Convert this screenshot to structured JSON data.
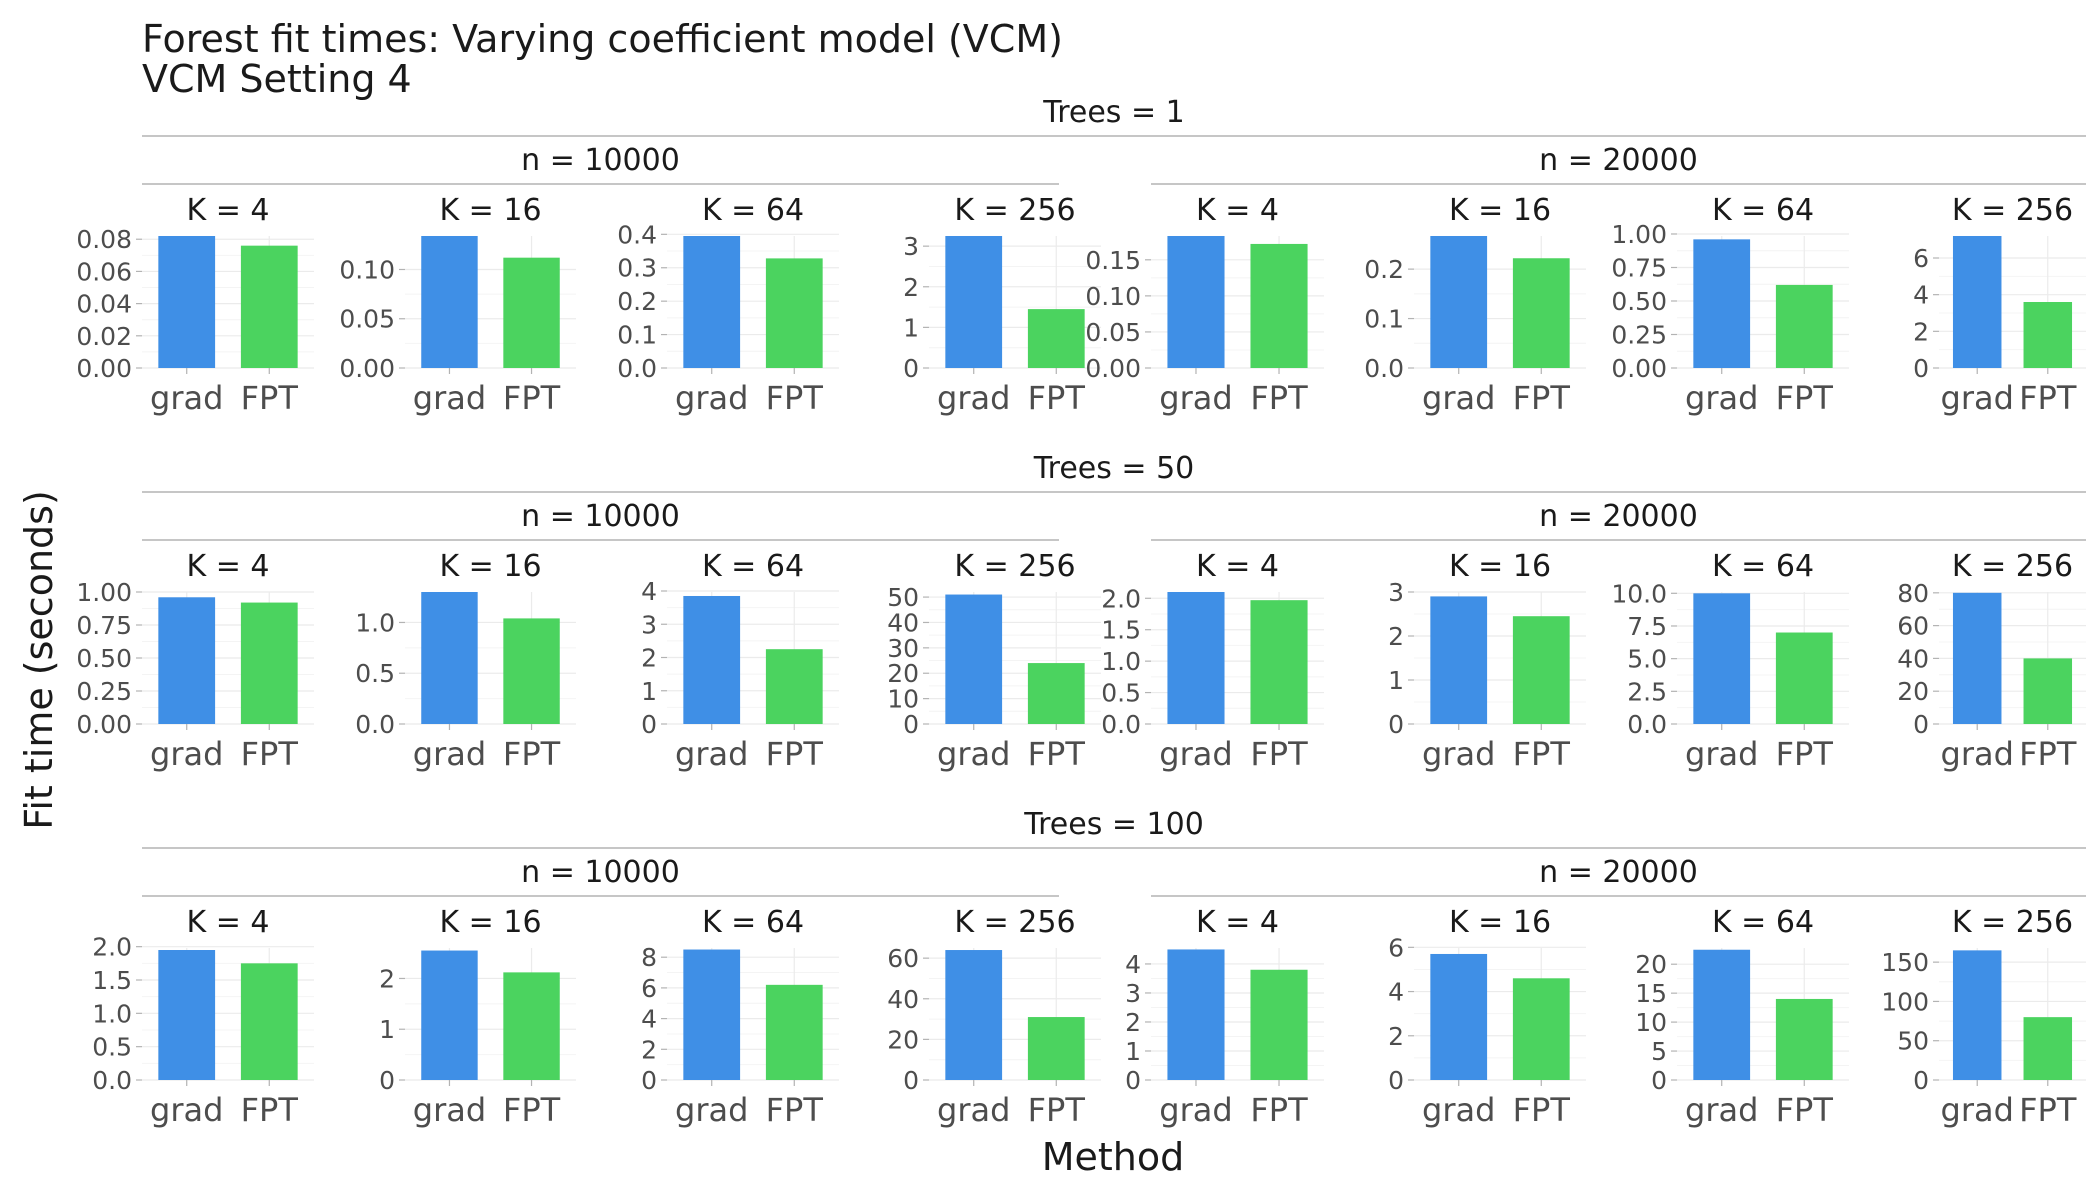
{
  "chart_data": {
    "type": "bar",
    "title": "Forest fit times: Varying coefficient model (VCM)",
    "subtitle": "VCM Setting 4",
    "xlabel": "Method",
    "ylabel": "Fit time (seconds)",
    "categories": [
      "grad",
      "FPT"
    ],
    "colors": {
      "grad": "#3f8fe6",
      "FPT": "#4bd35f"
    },
    "rows": [
      {
        "label": "Trees = 1",
        "groups": [
          {
            "label": "n = 10000",
            "panels": [
              {
                "label": "K = 4",
                "values": [
                  0.082,
                  0.076
                ],
                "ticks": [
                  0,
                  0.02,
                  0.04,
                  0.06,
                  0.08
                ],
                "tick_labels": [
                  "0.00",
                  "0.02",
                  "0.04",
                  "0.06",
                  "0.08"
                ],
                "ylim": [
                  0,
                  0.082
                ]
              },
              {
                "label": "K = 16",
                "values": [
                  0.134,
                  0.112
                ],
                "ticks": [
                  0,
                  0.05,
                  0.1
                ],
                "tick_labels": [
                  "0.00",
                  "0.05",
                  "0.10"
                ],
                "ylim": [
                  0,
                  0.134
                ]
              },
              {
                "label": "K = 64",
                "values": [
                  0.395,
                  0.328
                ],
                "ticks": [
                  0,
                  0.1,
                  0.2,
                  0.3,
                  0.4
                ],
                "tick_labels": [
                  "0.0",
                  "0.1",
                  "0.2",
                  "0.3",
                  "0.4"
                ],
                "ylim": [
                  0,
                  0.395
                ]
              },
              {
                "label": "K = 256",
                "values": [
                  3.25,
                  1.45
                ],
                "ticks": [
                  0,
                  1,
                  2,
                  3
                ],
                "tick_labels": [
                  "0",
                  "1",
                  "2",
                  "3"
                ],
                "ylim": [
                  0,
                  3.25
                ]
              }
            ]
          },
          {
            "label": "n = 20000",
            "panels": [
              {
                "label": "K = 4",
                "values": [
                  0.183,
                  0.172
                ],
                "ticks": [
                  0,
                  0.05,
                  0.1,
                  0.15
                ],
                "tick_labels": [
                  "0.00",
                  "0.05",
                  "0.10",
                  "0.15"
                ],
                "ylim": [
                  0,
                  0.183
                ]
              },
              {
                "label": "K = 16",
                "values": [
                  0.267,
                  0.222
                ],
                "ticks": [
                  0,
                  0.1,
                  0.2
                ],
                "tick_labels": [
                  "0.0",
                  "0.1",
                  "0.2"
                ],
                "ylim": [
                  0,
                  0.267
                ]
              },
              {
                "label": "K = 64",
                "values": [
                  0.96,
                  0.62
                ],
                "ticks": [
                  0,
                  0.25,
                  0.5,
                  0.75,
                  1.0
                ],
                "tick_labels": [
                  "0.00",
                  "0.25",
                  "0.50",
                  "0.75",
                  "1.00"
                ],
                "ylim": [
                  0,
                  0.985
                ]
              },
              {
                "label": "K = 256",
                "values": [
                  7.2,
                  3.6
                ],
                "ticks": [
                  0,
                  2,
                  4,
                  6
                ],
                "tick_labels": [
                  "0",
                  "2",
                  "4",
                  "6"
                ],
                "ylim": [
                  0,
                  7.2
                ]
              }
            ]
          }
        ]
      },
      {
        "label": "Trees = 50",
        "groups": [
          {
            "label": "n = 10000",
            "panels": [
              {
                "label": "K = 4",
                "values": [
                  0.96,
                  0.92
                ],
                "ticks": [
                  0,
                  0.25,
                  0.5,
                  0.75,
                  1.0
                ],
                "tick_labels": [
                  "0.00",
                  "0.25",
                  "0.50",
                  "0.75",
                  "1.00"
                ],
                "ylim": [
                  0,
                  1.0
                ]
              },
              {
                "label": "K = 16",
                "values": [
                  1.3,
                  1.04
                ],
                "ticks": [
                  0,
                  0.5,
                  1.0
                ],
                "tick_labels": [
                  "0.0",
                  "0.5",
                  "1.0"
                ],
                "ylim": [
                  0,
                  1.3
                ]
              },
              {
                "label": "K = 64",
                "values": [
                  3.85,
                  2.25
                ],
                "ticks": [
                  0,
                  1,
                  2,
                  3,
                  4
                ],
                "tick_labels": [
                  "0",
                  "1",
                  "2",
                  "3",
                  "4"
                ],
                "ylim": [
                  0,
                  3.97
                ]
              },
              {
                "label": "K = 256",
                "values": [
                  51,
                  24
                ],
                "ticks": [
                  0,
                  10,
                  20,
                  30,
                  40,
                  50
                ],
                "tick_labels": [
                  "0",
                  "10",
                  "20",
                  "30",
                  "40",
                  "50"
                ],
                "ylim": [
                  0,
                  52
                ]
              }
            ]
          },
          {
            "label": "n = 20000",
            "panels": [
              {
                "label": "K = 4",
                "values": [
                  2.1,
                  1.97
                ],
                "ticks": [
                  0,
                  0.5,
                  1.0,
                  1.5,
                  2.0
                ],
                "tick_labels": [
                  "0.0",
                  "0.5",
                  "1.0",
                  "1.5",
                  "2.0"
                ],
                "ylim": [
                  0,
                  2.1
                ]
              },
              {
                "label": "K = 16",
                "values": [
                  2.9,
                  2.45
                ],
                "ticks": [
                  0,
                  1,
                  2,
                  3
                ],
                "tick_labels": [
                  "0",
                  "1",
                  "2",
                  "3"
                ],
                "ylim": [
                  0,
                  3.0
                ]
              },
              {
                "label": "K = 64",
                "values": [
                  10.0,
                  7.0
                ],
                "ticks": [
                  0,
                  2.5,
                  5.0,
                  7.5,
                  10.0
                ],
                "tick_labels": [
                  "0.0",
                  "2.5",
                  "5.0",
                  "7.5",
                  "10.0"
                ],
                "ylim": [
                  0,
                  10.1
                ]
              },
              {
                "label": "K = 256",
                "values": [
                  80,
                  40
                ],
                "ticks": [
                  0,
                  20,
                  40,
                  60,
                  80
                ],
                "tick_labels": [
                  "0",
                  "20",
                  "40",
                  "60",
                  "80"
                ],
                "ylim": [
                  0,
                  80.5
                ]
              }
            ]
          }
        ]
      },
      {
        "label": "Trees = 100",
        "groups": [
          {
            "label": "n = 10000",
            "panels": [
              {
                "label": "K = 4",
                "values": [
                  1.95,
                  1.75
                ],
                "ticks": [
                  0,
                  0.5,
                  1.0,
                  1.5,
                  2.0
                ],
                "tick_labels": [
                  "0.0",
                  "0.5",
                  "1.0",
                  "1.5",
                  "2.0"
                ],
                "ylim": [
                  0,
                  1.98
                ]
              },
              {
                "label": "K = 16",
                "values": [
                  2.55,
                  2.12
                ],
                "ticks": [
                  0,
                  1,
                  2
                ],
                "tick_labels": [
                  "0",
                  "1",
                  "2"
                ],
                "ylim": [
                  0,
                  2.6
                ]
              },
              {
                "label": "K = 64",
                "values": [
                  8.5,
                  6.2
                ],
                "ticks": [
                  0,
                  2,
                  4,
                  6,
                  8
                ],
                "tick_labels": [
                  "0",
                  "2",
                  "4",
                  "6",
                  "8"
                ],
                "ylim": [
                  0,
                  8.6
                ]
              },
              {
                "label": "K = 256",
                "values": [
                  64,
                  31
                ],
                "ticks": [
                  0,
                  20,
                  40,
                  60
                ],
                "tick_labels": [
                  "0",
                  "20",
                  "40",
                  "60"
                ],
                "ylim": [
                  0,
                  65
                ]
              }
            ]
          },
          {
            "label": "n = 20000",
            "panels": [
              {
                "label": "K = 4",
                "values": [
                  4.5,
                  3.8
                ],
                "ticks": [
                  0,
                  1,
                  2,
                  3,
                  4
                ],
                "tick_labels": [
                  "0",
                  "1",
                  "2",
                  "3",
                  "4"
                ],
                "ylim": [
                  0,
                  4.55
                ]
              },
              {
                "label": "K = 16",
                "values": [
                  5.7,
                  4.6
                ],
                "ticks": [
                  0,
                  2,
                  4,
                  6
                ],
                "tick_labels": [
                  "0",
                  "2",
                  "4",
                  "6"
                ],
                "ylim": [
                  0,
                  5.97
                ]
              },
              {
                "label": "K = 64",
                "values": [
                  22.5,
                  14.0
                ],
                "ticks": [
                  0,
                  5,
                  10,
                  15,
                  20
                ],
                "tick_labels": [
                  "0",
                  "5",
                  "10",
                  "15",
                  "20"
                ],
                "ylim": [
                  0,
                  22.8
                ]
              },
              {
                "label": "K = 256",
                "values": [
                  165,
                  80
                ],
                "ticks": [
                  0,
                  50,
                  100,
                  150
                ],
                "tick_labels": [
                  "0",
                  "50",
                  "100",
                  "150"
                ],
                "ylim": [
                  0,
                  168
                ]
              }
            ]
          }
        ]
      }
    ]
  }
}
